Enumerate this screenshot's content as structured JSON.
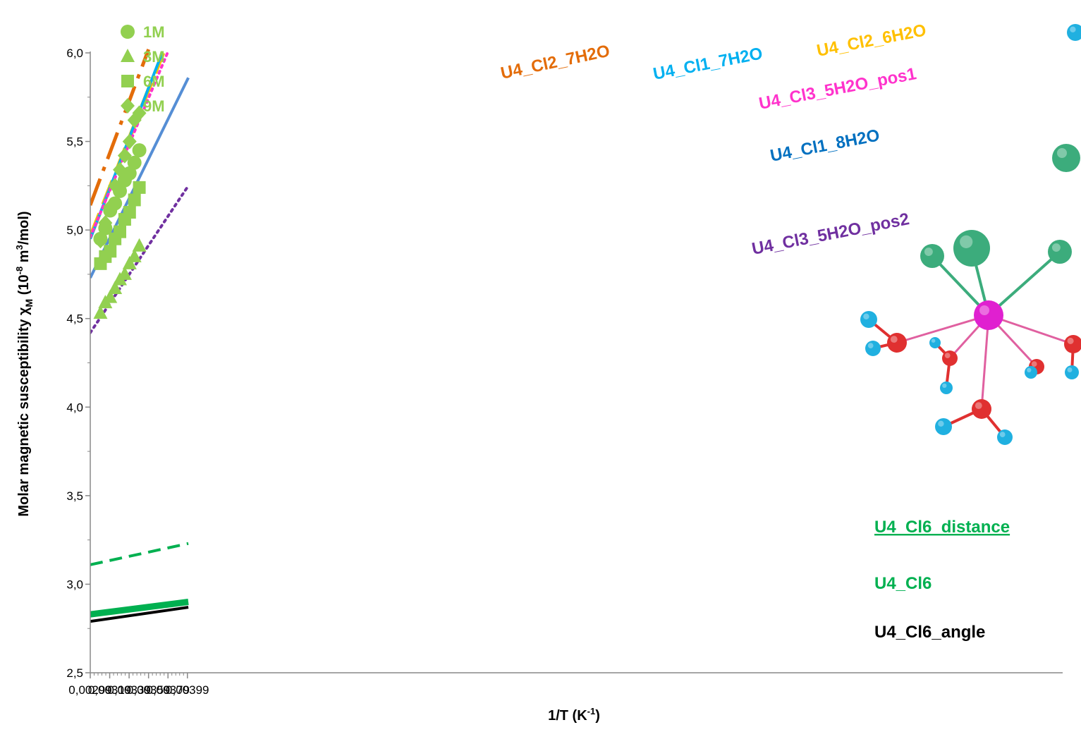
{
  "chart_data": {
    "type": "scatter",
    "title": "",
    "xlabel": "1/T (K",
    "xlabel_sup": "-1",
    "xlabel_end": ")",
    "ylabel": "Molar magnetic susceptibility χ",
    "ylabel_sub": "M",
    "ylabel_mid": " (10",
    "ylabel_sup1": "-8",
    "ylabel_mid2": " m",
    "ylabel_sup2": "3",
    "ylabel_end": "/mol)",
    "xlim": [
      0.00299,
      0.004
    ],
    "ylim": [
      2.5,
      6.0
    ],
    "x_ticks": [
      "0,00299",
      "0,00319",
      "0,00339",
      "0,00359",
      "0,00379",
      "0,00399"
    ],
    "x_tick_values": [
      0.00299,
      0.00319,
      0.00339,
      0.00359,
      0.00379,
      0.00399
    ],
    "y_ticks": [
      "2,5",
      "3,0",
      "3,5",
      "4,0",
      "4,5",
      "5,0",
      "5,5",
      "6,0"
    ],
    "y_tick_values": [
      2.5,
      3.0,
      3.5,
      4.0,
      4.5,
      5.0,
      5.5,
      6.0
    ],
    "grid": false,
    "legend_position": "top-left",
    "x_points": [
      0.003095,
      0.003145,
      0.003195,
      0.003245,
      0.003295,
      0.003345,
      0.003395,
      0.003445,
      0.003495
    ],
    "scatter_series": [
      {
        "name": "1M",
        "marker": "circle",
        "color": "#92d050",
        "y": [
          4.95,
          5.01,
          5.11,
          5.15,
          5.22,
          5.28,
          5.32,
          5.38,
          5.45
        ]
      },
      {
        "name": "3M",
        "marker": "triangle",
        "color": "#92d050",
        "y": [
          4.53,
          4.59,
          4.62,
          4.67,
          4.72,
          4.75,
          4.81,
          4.85,
          4.91
        ]
      },
      {
        "name": "6M",
        "marker": "square",
        "color": "#92d050",
        "y": [
          4.81,
          4.85,
          4.88,
          4.95,
          4.99,
          5.06,
          5.1,
          5.17,
          5.24
        ]
      },
      {
        "name": "9M",
        "marker": "diamond",
        "color": "#92d050",
        "y": [
          4.94,
          5.04,
          5.13,
          5.25,
          5.34,
          5.42,
          5.5,
          5.62,
          5.66
        ]
      }
    ],
    "line_series": [
      {
        "name": "U4_Cl2_7H2O",
        "color": "#e36c09",
        "dash": "dashdot",
        "width": 5,
        "x": [
          0.00299,
          0.00359
        ],
        "y": [
          5.14,
          6.02
        ]
      },
      {
        "name": "U4_Cl2_6H2O",
        "color": "#ffc000",
        "dash": "longdash",
        "width": 6,
        "x": [
          0.00299,
          0.00374
        ],
        "y": [
          4.96,
          6.0
        ]
      },
      {
        "name": "U4_Cl1_7H2O",
        "color": "#00b0f0",
        "dash": "solid",
        "width": 4,
        "x": [
          0.00299,
          0.00373
        ],
        "y": [
          4.95,
          6.0
        ]
      },
      {
        "name": "U4_Cl3_5H2O_pos1",
        "color": "#ff33cc",
        "dash": "dot",
        "width": 4,
        "x": [
          0.00299,
          0.003785
        ],
        "y": [
          4.96,
          6.0
        ]
      },
      {
        "name": "U4_Cl1_8H2O",
        "color": "#558ed5",
        "dash": "solid",
        "width": 4,
        "x": [
          0.00299,
          0.004
        ],
        "y": [
          4.73,
          5.86
        ]
      },
      {
        "name": "U4_Cl3_5H2O_pos2",
        "color": "#7030a0",
        "dash": "dot",
        "width": 4,
        "x": [
          0.00299,
          0.004
        ],
        "y": [
          4.42,
          5.25
        ]
      },
      {
        "name": "U4_Cl6_distance",
        "color": "#00b050",
        "dash": "dash",
        "width": 4,
        "x": [
          0.00299,
          0.004
        ],
        "y": [
          3.11,
          3.23
        ]
      },
      {
        "name": "U4_Cl6",
        "color": "#00b050",
        "dash": "solid",
        "width": 9,
        "x": [
          0.00299,
          0.004
        ],
        "y": [
          2.83,
          2.9
        ]
      },
      {
        "name": "U4_Cl6_angle",
        "color": "#000000",
        "dash": "solid",
        "width": 4,
        "x": [
          0.00299,
          0.004
        ],
        "y": [
          2.79,
          2.87
        ]
      }
    ],
    "annotations": [
      {
        "text": "U4_Cl2_7H2O",
        "color": "#e36c09",
        "underline": false
      },
      {
        "text": "U4_Cl1_7H2O",
        "color": "#00b0f0",
        "underline": false
      },
      {
        "text": "U4_Cl2_6H2O",
        "color": "#ffc000",
        "underline": false
      },
      {
        "text": "U4_Cl3_5H2O_pos1",
        "color": "#ff33cc",
        "underline": false
      },
      {
        "text": "U4_Cl1_8H2O",
        "color": "#0070c0",
        "underline": false
      },
      {
        "text": "U4_Cl3_5H2O_pos2",
        "color": "#7030a0",
        "underline": false
      },
      {
        "text": "U4_Cl6_distance",
        "color": "#00b050",
        "underline": true
      },
      {
        "text": "U4_Cl6",
        "color": "#00b050",
        "underline": false
      },
      {
        "text": "U4_Cl6_angle",
        "color": "#000000",
        "underline": false
      }
    ]
  },
  "molecule_colors": {
    "uranium": "#e020d0",
    "chlorine": "#3cac7c",
    "oxygen": "#e03030",
    "hydrogen": "#20b0e0",
    "bond_cl": "#3cac7c",
    "bond_o": "#e03030"
  }
}
